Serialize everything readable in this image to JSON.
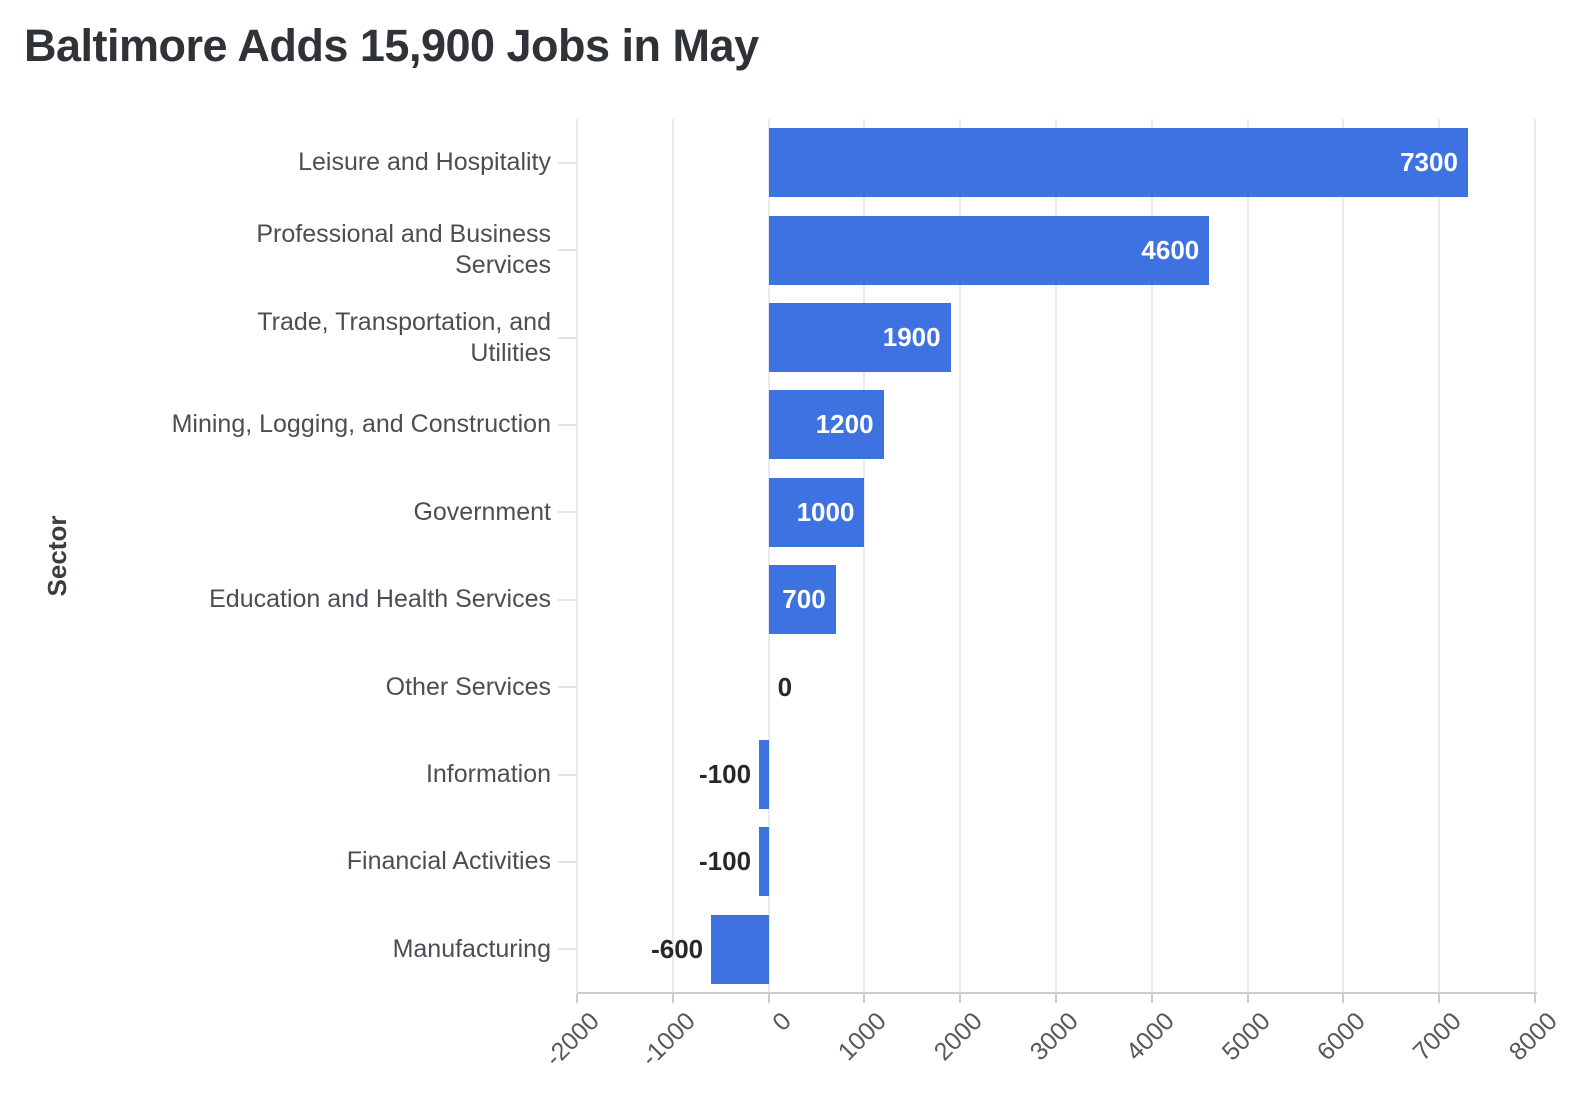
{
  "title": "Baltimore Adds 15,900 Jobs in May",
  "chart_data": {
    "type": "bar",
    "orientation": "horizontal",
    "title": "Baltimore Adds 15,900 Jobs in May",
    "xlabel": "",
    "ylabel": "Sector",
    "categories": [
      "Leisure and Hospitality",
      "Professional and Business\nServices",
      "Trade, Transportation, and\nUtilities",
      "Mining, Logging, and Construction",
      "Government",
      "Education and Health Services",
      "Other Services",
      "Information",
      "Financial Activities",
      "Manufacturing"
    ],
    "values": [
      7300,
      4600,
      1900,
      1200,
      1000,
      700,
      0,
      -100,
      -100,
      -600
    ],
    "data_labels": [
      "7300",
      "4600",
      "1900",
      "1200",
      "1000",
      "700",
      "0",
      "-100",
      "-100",
      "-600"
    ],
    "xlim": [
      -2000,
      8000
    ],
    "xticks": [
      -2000,
      -1000,
      0,
      1000,
      2000,
      3000,
      4000,
      5000,
      6000,
      7000,
      8000
    ],
    "xtick_labels": [
      "-2000",
      "-1000",
      "0",
      "1000",
      "2000",
      "3000",
      "4000",
      "5000",
      "6000",
      "7000",
      "8000"
    ],
    "grid": true,
    "legend": false,
    "bar_color": "#3E72E1",
    "label_color_inside": "#FFFFFF",
    "label_color_outside": "#26282B"
  }
}
